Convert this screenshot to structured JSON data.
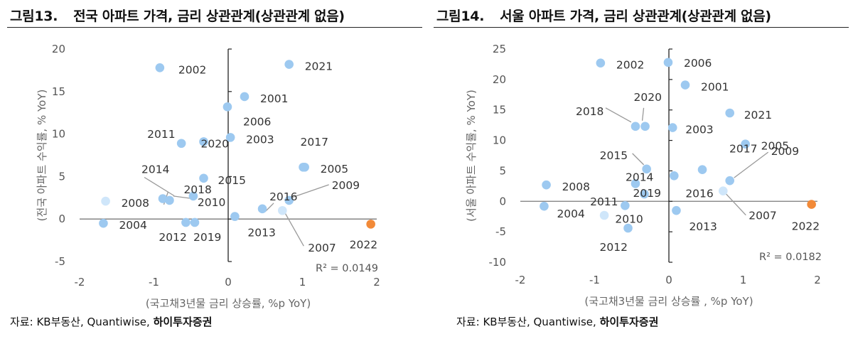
{
  "panels": [
    {
      "id": "left",
      "figure_number": "그림13.",
      "figure_title": "전국 아파트 가격, 금리 상관관계(상관관계 없음)",
      "source": "자료: KB부동산, Quantiwise, 하이투자증권",
      "source_prefix": "자료: ",
      "source_body": "KB부동산, Quantiwise, ",
      "source_bold": "하이투자증권"
    },
    {
      "id": "right",
      "figure_number": "그림14.",
      "figure_title": "서울 아파트 가격, 금리 상관관계(상관관계 없음)",
      "source_prefix": "자료: ",
      "source_body": "KB부동산, Quantiwise, ",
      "source_bold": "하이투자증권"
    }
  ],
  "chart_data": [
    {
      "type": "scatter",
      "title": "전국 아파트 가격, 금리 상관관계(상관관계 없음)",
      "xlabel": "(국고채3년물 금리 상승률, %p YoY)",
      "ylabel": "(전국 아파트 수익률, % YoY)",
      "xlim": [
        -2,
        2
      ],
      "ylim": [
        -5,
        20
      ],
      "xticks": [
        -2,
        -1,
        0,
        1,
        2
      ],
      "yticks": [
        -5,
        0,
        5,
        10,
        15,
        20
      ],
      "annotation": "R² = 0.0149",
      "colors": {
        "point": "#9dc9f0",
        "point_light": "#cfe6fa",
        "highlight": "#f28a38"
      },
      "points": [
        {
          "label": "2001",
          "x": 0.22,
          "y": 14.4
        },
        {
          "label": "2002",
          "x": -0.92,
          "y": 17.8
        },
        {
          "label": "2003",
          "x": 0.03,
          "y": 9.6
        },
        {
          "label": "2004",
          "x": -1.68,
          "y": -0.5
        },
        {
          "label": "2005",
          "x": 1.03,
          "y": 6.1
        },
        {
          "label": "2006",
          "x": -0.01,
          "y": 13.2
        },
        {
          "label": "2007",
          "x": 0.73,
          "y": 1.0
        },
        {
          "label": "2008",
          "x": -1.65,
          "y": 2.1
        },
        {
          "label": "2009",
          "x": 0.82,
          "y": 2.2
        },
        {
          "label": "2010",
          "x": -0.47,
          "y": 2.7
        },
        {
          "label": "2011",
          "x": -0.63,
          "y": 8.9
        },
        {
          "label": "2012",
          "x": -0.57,
          "y": -0.4
        },
        {
          "label": "2013",
          "x": 0.09,
          "y": 0.3
        },
        {
          "label": "2014",
          "x": -0.88,
          "y": 2.4
        },
        {
          "label": "2015",
          "x": -0.33,
          "y": 4.8
        },
        {
          "label": "2016",
          "x": 0.46,
          "y": 1.2
        },
        {
          "label": "2017",
          "x": 1.01,
          "y": 6.1
        },
        {
          "label": "2018",
          "x": -0.79,
          "y": 2.2
        },
        {
          "label": "2019",
          "x": -0.45,
          "y": -0.4
        },
        {
          "label": "2020",
          "x": -0.33,
          "y": 9.1
        },
        {
          "label": "2021",
          "x": 0.82,
          "y": 18.2
        },
        {
          "label": "2022",
          "x": 1.92,
          "y": -0.6
        }
      ]
    },
    {
      "type": "scatter",
      "title": "서울 아파트 가격, 금리 상관관계(상관관계 없음)",
      "xlabel": "(국고채3년물 금리 상승률 , %p YoY)",
      "ylabel": "(서울 아파트 수익률, % YoY)",
      "xlim": [
        -2,
        2
      ],
      "ylim": [
        -10,
        25
      ],
      "xticks": [
        -2,
        -1,
        0,
        1,
        2
      ],
      "yticks": [
        -10,
        -5,
        0,
        5,
        10,
        15,
        20,
        25
      ],
      "annotation": "R² = 0.0182",
      "colors": {
        "point": "#9dc9f0",
        "point_light": "#cfe6fa",
        "highlight": "#f28a38"
      },
      "points": [
        {
          "label": "2001",
          "x": 0.22,
          "y": 19.1
        },
        {
          "label": "2002",
          "x": -0.92,
          "y": 22.7
        },
        {
          "label": "2003",
          "x": 0.05,
          "y": 12.1
        },
        {
          "label": "2004",
          "x": -1.68,
          "y": -0.8
        },
        {
          "label": "2005",
          "x": 1.03,
          "y": 9.4
        },
        {
          "label": "2006",
          "x": -0.01,
          "y": 22.8
        },
        {
          "label": "2007",
          "x": 0.73,
          "y": 1.7
        },
        {
          "label": "2008",
          "x": -1.65,
          "y": 2.7
        },
        {
          "label": "2009",
          "x": 0.82,
          "y": 3.4
        },
        {
          "label": "2010",
          "x": -0.59,
          "y": -0.7
        },
        {
          "label": "2011",
          "x": -0.87,
          "y": -2.3
        },
        {
          "label": "2012",
          "x": -0.55,
          "y": -4.4
        },
        {
          "label": "2013",
          "x": 0.1,
          "y": -1.5
        },
        {
          "label": "2014",
          "x": -0.45,
          "y": 2.9
        },
        {
          "label": "2015",
          "x": -0.3,
          "y": 5.3
        },
        {
          "label": "2016",
          "x": 0.07,
          "y": 4.2
        },
        {
          "label": "2017",
          "x": 0.45,
          "y": 5.2
        },
        {
          "label": "2018",
          "x": -0.45,
          "y": 12.3
        },
        {
          "label": "2019",
          "x": -0.33,
          "y": 1.2
        },
        {
          "label": "2020",
          "x": -0.32,
          "y": 12.3
        },
        {
          "label": "2021",
          "x": 0.82,
          "y": 14.5
        },
        {
          "label": "2022",
          "x": 1.92,
          "y": -0.5
        }
      ]
    }
  ]
}
